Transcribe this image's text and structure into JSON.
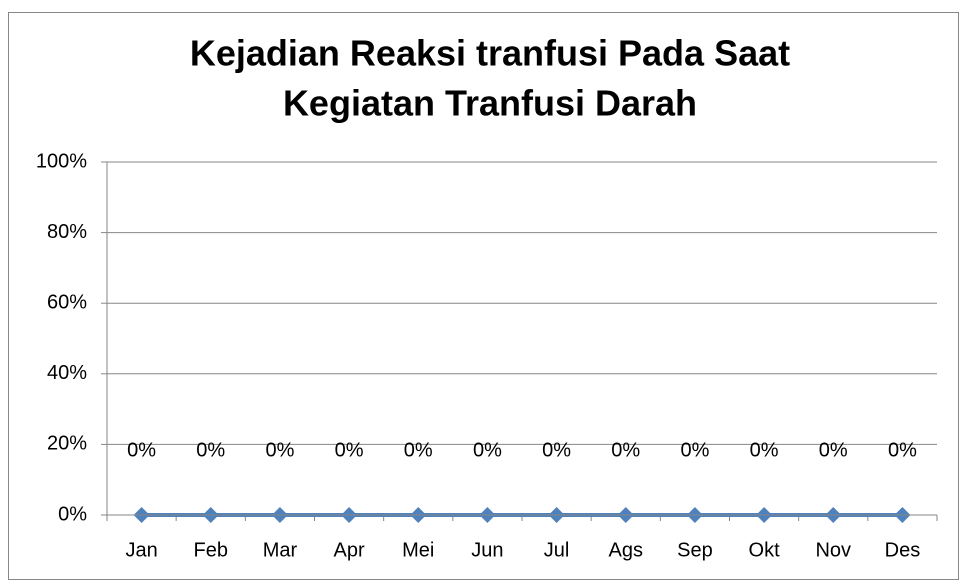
{
  "chart_data": {
    "type": "line",
    "title": [
      "Kejadian Reaksi tranfusi Pada Saat",
      "Kegiatan Tranfusi Darah"
    ],
    "categories": [
      "Jan",
      "Feb",
      "Mar",
      "Apr",
      "Mei",
      "Jun",
      "Jul",
      "Ags",
      "Sep",
      "Okt",
      "Nov",
      "Des"
    ],
    "series": [
      {
        "color": "#4f81bd",
        "values": [
          0,
          0,
          0,
          0,
          0,
          0,
          0,
          0,
          0,
          0,
          0,
          0
        ],
        "value_labels": [
          "0%",
          "0%",
          "0%",
          "0%",
          "0%",
          "0%",
          "0%",
          "0%",
          "0%",
          "0%",
          "0%",
          "0%"
        ]
      }
    ],
    "ylim": [
      0,
      100
    ],
    "yticks": [
      {
        "value": 0,
        "label": "0%"
      },
      {
        "value": 20,
        "label": "20%"
      },
      {
        "value": 40,
        "label": "40%"
      },
      {
        "value": 60,
        "label": "60%"
      },
      {
        "value": 80,
        "label": "80%"
      },
      {
        "value": 100,
        "label": "100%"
      }
    ],
    "grid": true
  }
}
